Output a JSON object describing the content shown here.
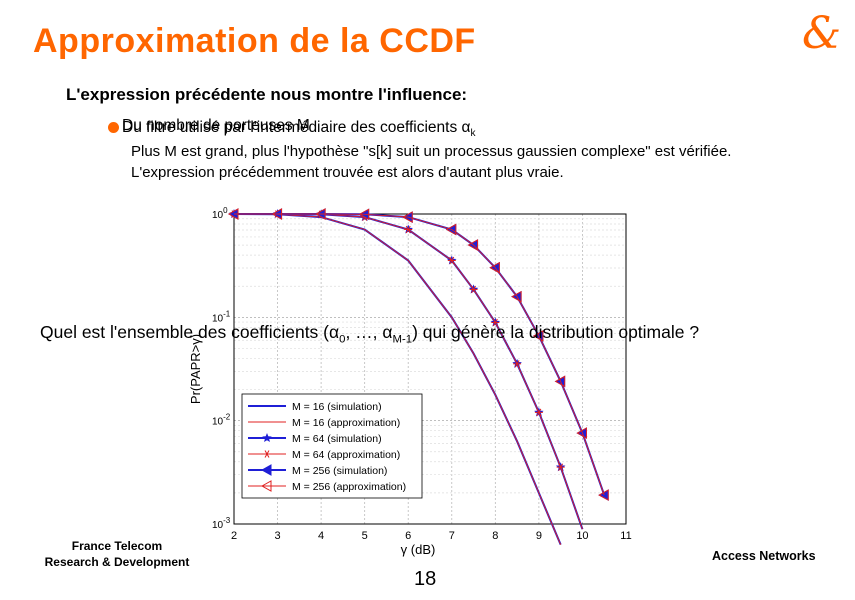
{
  "slide": {
    "title": "Approximation de la CCDF",
    "logo_glyph": "&",
    "intro": "L'expression précédente nous montre l'influence:",
    "bullet_a": "Du nombre de porteuses M",
    "bullet_b": "Du filtre utilisé par l'intermédiaire des coefficients αk",
    "paragraph": "Plus M est grand, plus l'hypothèse \"s[k] suit un processus gaussien complexe\" est vérifiée. L'expression précédemment trouvée est alors d'autant plus vraie.",
    "question": "Quel est l'ensemble des coefficients (α0, …, αM-1) qui génère la distribution optimale ?",
    "footer_left_line1": "France Telecom",
    "footer_left_line2": "Research & Development",
    "footer_right": "Access Networks",
    "page_number": "18"
  },
  "colors": {
    "accent": "#ff6600",
    "blue": "#1f1fd6",
    "red": "#e02020"
  },
  "chart_data": {
    "type": "line",
    "xlabel": "γ (dB)",
    "ylabel": "Pr(PAPR>γ)",
    "x_ticks": [
      "2",
      "3",
      "4",
      "5",
      "6",
      "7",
      "8",
      "9",
      "10",
      "11"
    ],
    "y_ticks": [
      "10^0",
      "10^-1",
      "10^-2",
      "10^-3"
    ],
    "xlim": [
      2,
      11
    ],
    "ylim_log10": [
      -3,
      0
    ],
    "y_scale": "log",
    "grid": true,
    "legend_position": "lower-left",
    "series": [
      {
        "name": "M = 16 (simulation)",
        "style": "blue-solid",
        "marker": "none",
        "x": [
          2,
          3,
          4,
          5,
          6,
          7,
          7.5,
          8,
          8.5,
          9,
          9.5
        ],
        "y_log": [
          0,
          -0.003,
          -0.03,
          -0.15,
          -0.45,
          -1.0,
          -1.35,
          -1.75,
          -2.2,
          -2.7,
          -3.2
        ]
      },
      {
        "name": "M = 16 (approximation)",
        "style": "red-thin",
        "marker": "none",
        "x": [
          2,
          3,
          4,
          5,
          6,
          7,
          7.5,
          8,
          8.5,
          9,
          9.5
        ],
        "y_log": [
          0,
          -0.003,
          -0.03,
          -0.15,
          -0.45,
          -1.0,
          -1.35,
          -1.75,
          -2.2,
          -2.7,
          -3.2
        ]
      },
      {
        "name": "M = 64 (simulation)",
        "style": "blue-solid",
        "marker": "star",
        "x": [
          2,
          3,
          4,
          5,
          6,
          7,
          7.5,
          8,
          8.5,
          9,
          9.5,
          10
        ],
        "y_log": [
          0,
          0,
          -0.002,
          -0.03,
          -0.15,
          -0.45,
          -0.73,
          -1.05,
          -1.45,
          -1.92,
          -2.45,
          -3.05
        ]
      },
      {
        "name": "M = 64 (approximation)",
        "style": "red-thin",
        "marker": "asterisk",
        "x": [
          2,
          3,
          4,
          5,
          6,
          7,
          7.5,
          8,
          8.5,
          9,
          9.5,
          10
        ],
        "y_log": [
          0,
          0,
          -0.002,
          -0.03,
          -0.15,
          -0.45,
          -0.73,
          -1.05,
          -1.45,
          -1.92,
          -2.45,
          -3.05
        ]
      },
      {
        "name": "M = 256 (simulation)",
        "style": "blue-solid",
        "marker": "triangle-left",
        "x": [
          2,
          3,
          4,
          5,
          6,
          7,
          7.5,
          8,
          8.5,
          9,
          9.5,
          10,
          10.5
        ],
        "y_log": [
          0,
          0,
          0,
          -0.003,
          -0.03,
          -0.15,
          -0.3,
          -0.52,
          -0.8,
          -1.18,
          -1.62,
          -2.12,
          -2.72
        ]
      },
      {
        "name": "M = 256 (approximation)",
        "style": "red-thin",
        "marker": "triangle-left",
        "x": [
          2,
          3,
          4,
          5,
          6,
          7,
          7.5,
          8,
          8.5,
          9,
          9.5,
          10,
          10.5
        ],
        "y_log": [
          0,
          0,
          0,
          -0.003,
          -0.03,
          -0.15,
          -0.3,
          -0.52,
          -0.8,
          -1.18,
          -1.62,
          -2.12,
          -2.72
        ]
      }
    ]
  }
}
